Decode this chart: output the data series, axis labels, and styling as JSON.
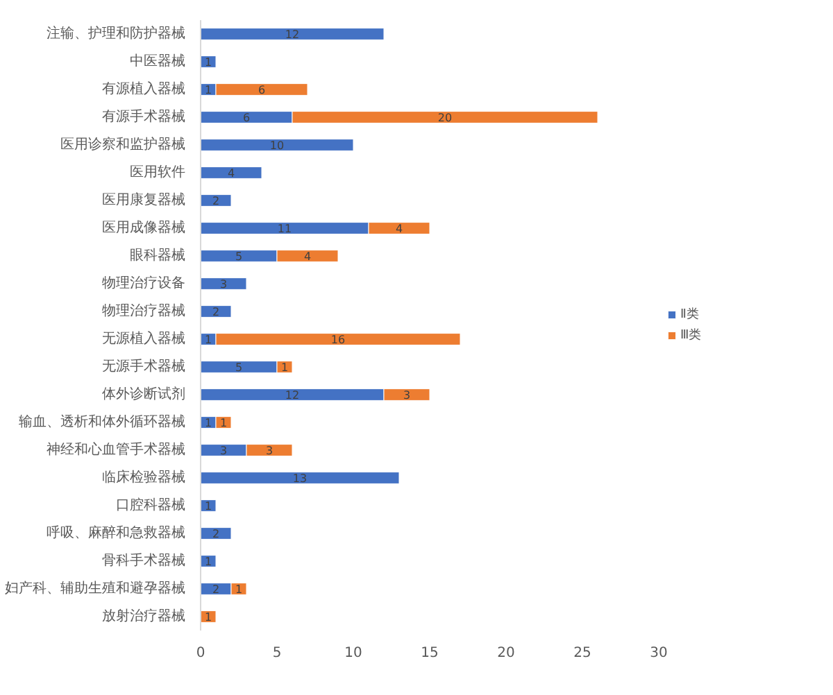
{
  "chart_data": {
    "type": "bar",
    "orientation": "horizontal",
    "stacked": true,
    "data_labels": true,
    "legend": "right",
    "grid": false,
    "categories": [
      "注输、护理和防护器械",
      "中医器械",
      "有源植入器械",
      "有源手术器械",
      "医用诊察和监护器械",
      "医用软件",
      "医用康复器械",
      "医用成像器械",
      "眼科器械",
      "物理治疗设备",
      "物理治疗器械",
      "无源植入器械",
      "无源手术器械",
      "体外诊断试剂",
      "输血、透析和体外循环器械",
      "神经和心血管手术器械",
      "临床检验器械",
      "口腔科器械",
      "呼吸、麻醉和急救器械",
      "骨科手术器械",
      "妇产科、辅助生殖和避孕器械",
      "放射治疗器械"
    ],
    "series": [
      {
        "name": "Ⅱ类",
        "color": "#4472c4",
        "values": [
          12,
          1,
          1,
          6,
          10,
          4,
          2,
          11,
          5,
          3,
          2,
          1,
          5,
          12,
          1,
          3,
          13,
          1,
          2,
          1,
          2,
          null
        ]
      },
      {
        "name": "Ⅲ类",
        "color": "#ed7d31",
        "values": [
          null,
          null,
          6,
          20,
          null,
          null,
          null,
          4,
          4,
          null,
          null,
          16,
          1,
          3,
          1,
          3,
          null,
          null,
          null,
          null,
          1,
          1
        ]
      }
    ],
    "xlim": [
      0,
      30
    ],
    "xticks": [
      0,
      5,
      10,
      15,
      20,
      25,
      30
    ]
  }
}
